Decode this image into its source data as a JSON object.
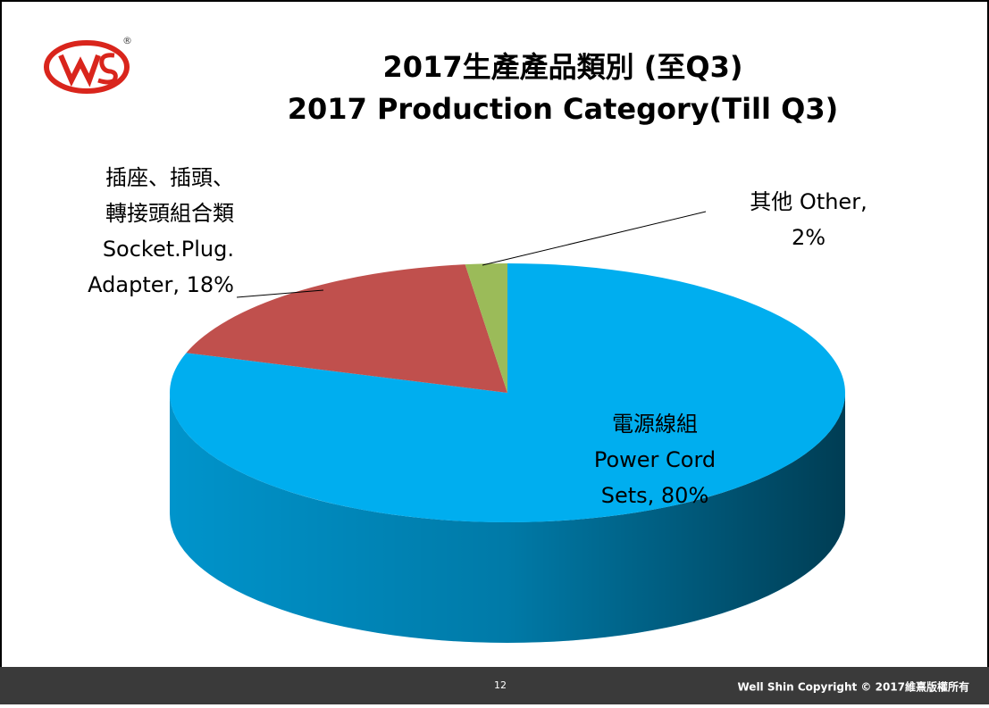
{
  "chart_data": {
    "type": "pie3d",
    "title": [
      "2017生產產品類別 (至Q3)",
      "2017 Production Category(Till Q3)"
    ],
    "values": [
      80,
      18,
      2
    ],
    "value_labels": [
      [
        "電源線組",
        "Power Cord",
        "Sets, 80%"
      ],
      [
        "插座、插頭、",
        "轉接頭組合類",
        "Socket.Plug.",
        "Adapter, 18%"
      ],
      [
        "其他 Other,",
        "2%"
      ]
    ],
    "colors": [
      "#00aeef",
      "#c0504d",
      "#9bbb59"
    ]
  },
  "logo_mark": "®",
  "footer": {
    "page": "12",
    "copyright": "Well Shin Copyright © 2017維熹版權所有"
  }
}
